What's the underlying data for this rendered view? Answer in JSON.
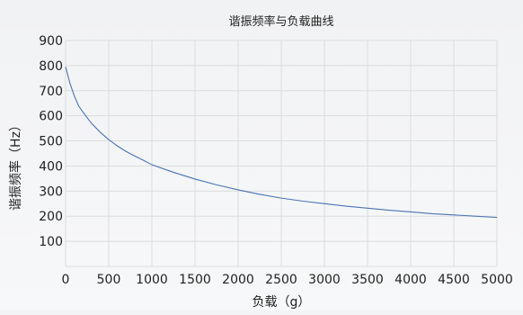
{
  "chart_data": {
    "type": "line",
    "title": "谐振频率与负载曲线",
    "xlabel": "负载（g）",
    "ylabel": "谐振频率（Hz）",
    "xlim": [
      0,
      5000
    ],
    "ylim": [
      0,
      900
    ],
    "x_ticks": [
      0,
      500,
      1000,
      1500,
      2000,
      2500,
      3000,
      3500,
      4000,
      4500,
      5000
    ],
    "y_ticks": [
      100,
      200,
      300,
      400,
      500,
      600,
      700,
      800,
      900
    ],
    "grid": true,
    "series": [
      {
        "color": "#4a73b5",
        "x": [
          0,
          50,
          100,
          150,
          200,
          300,
          400,
          500,
          600,
          700,
          800,
          900,
          1000,
          1250,
          1500,
          1750,
          2000,
          2250,
          2500,
          2750,
          3000,
          3250,
          3500,
          3750,
          4000,
          4250,
          4500,
          4750,
          5000
        ],
        "y": [
          795,
          730,
          680,
          640,
          615,
          570,
          535,
          505,
          480,
          458,
          440,
          423,
          405,
          375,
          348,
          325,
          305,
          287,
          272,
          260,
          250,
          240,
          232,
          224,
          217,
          210,
          205,
          200,
          195
        ]
      }
    ]
  }
}
